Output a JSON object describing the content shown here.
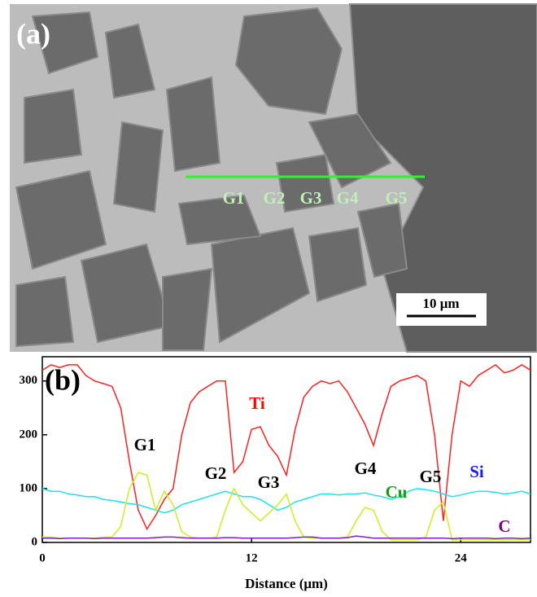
{
  "image_panel": {
    "label": "(a)",
    "markers": [
      "G1",
      "G2",
      "G3",
      "G4",
      "G5"
    ],
    "scale_bar": "10 μm"
  },
  "chart_data": {
    "type": "line",
    "panel_label": "(b)",
    "x_label": "Distance (μm)",
    "x": [
      0,
      0.5,
      1,
      1.5,
      2,
      2.5,
      3,
      3.5,
      4,
      4.5,
      5,
      5.5,
      6,
      6.5,
      7,
      7.5,
      8,
      8.5,
      9,
      9.5,
      10,
      10.5,
      11,
      11.5,
      12,
      12.5,
      13,
      13.5,
      14,
      14.5,
      15,
      15.5,
      16,
      16.5,
      17,
      17.5,
      18,
      18.5,
      19,
      19.5,
      20,
      20.5,
      21,
      21.5,
      22,
      22.5,
      23,
      23.5,
      24,
      24.5,
      25,
      25.5,
      26,
      26.5,
      27,
      27.5,
      28
    ],
    "xlim": [
      0,
      28
    ],
    "xticks": [
      0,
      12,
      24
    ],
    "ylim": [
      0,
      345
    ],
    "yticks": [
      0,
      100,
      200,
      300
    ],
    "series": [
      {
        "name": "Ti",
        "color": "#ff2020",
        "label_color": "#ff0000",
        "values": [
          320,
          330,
          325,
          330,
          330,
          310,
          300,
          295,
          290,
          250,
          150,
          60,
          25,
          50,
          80,
          100,
          200,
          260,
          280,
          290,
          300,
          300,
          130,
          150,
          210,
          215,
          180,
          160,
          125,
          210,
          270,
          290,
          300,
          295,
          300,
          280,
          250,
          220,
          180,
          240,
          290,
          300,
          305,
          310,
          300,
          200,
          40,
          200,
          300,
          290,
          310,
          320,
          330,
          315,
          320,
          330,
          320
        ]
      },
      {
        "name": "Si",
        "color": "#20e0f0",
        "label_color": "#1a1aff",
        "values": [
          100,
          95,
          95,
          90,
          88,
          85,
          85,
          80,
          78,
          75,
          72,
          70,
          65,
          60,
          55,
          60,
          70,
          75,
          80,
          85,
          90,
          95,
          90,
          85,
          85,
          80,
          70,
          60,
          65,
          75,
          80,
          85,
          90,
          90,
          88,
          90,
          90,
          92,
          88,
          85,
          80,
          85,
          95,
          100,
          98,
          95,
          90,
          85,
          88,
          92,
          95,
          95,
          93,
          90,
          92,
          95,
          90
        ]
      },
      {
        "name": "Cu",
        "color": "#c8f020",
        "label_color": "#10a010",
        "values": [
          10,
          10,
          8,
          8,
          8,
          8,
          8,
          10,
          10,
          30,
          100,
          130,
          125,
          60,
          95,
          70,
          20,
          10,
          8,
          8,
          10,
          60,
          100,
          70,
          55,
          40,
          55,
          70,
          90,
          40,
          10,
          8,
          8,
          8,
          8,
          10,
          40,
          65,
          60,
          20,
          5,
          5,
          5,
          5,
          10,
          60,
          75,
          5,
          5,
          5,
          5,
          5,
          5,
          5,
          5,
          5,
          5
        ]
      },
      {
        "name": "C",
        "color": "#8020c0",
        "label_color": "#800080",
        "values": [
          8,
          8,
          7,
          8,
          8,
          8,
          7,
          8,
          8,
          8,
          8,
          8,
          8,
          9,
          10,
          10,
          9,
          8,
          8,
          8,
          8,
          9,
          9,
          8,
          8,
          8,
          8,
          8,
          8,
          9,
          10,
          10,
          8,
          8,
          8,
          9,
          12,
          10,
          8,
          8,
          8,
          8,
          8,
          8,
          8,
          8,
          8,
          7,
          8,
          8,
          8,
          8,
          7,
          8,
          8,
          7,
          8
        ]
      }
    ],
    "annotations": [
      "G1",
      "G2",
      "G3",
      "G4",
      "G5"
    ]
  }
}
